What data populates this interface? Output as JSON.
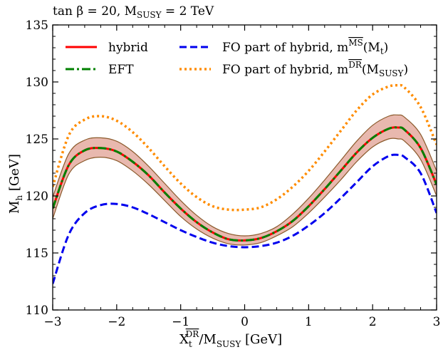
{
  "chart_data": {
    "type": "line",
    "title": "tan β = 20, M_SUSY = 2 TeV",
    "xlabel": "X_t^DR / M_SUSY [GeV]",
    "ylabel": "M_h [GeV]",
    "xlim": [
      -3,
      3
    ],
    "ylim": [
      110,
      135
    ],
    "xticks": [
      -3,
      -2,
      -1,
      0,
      1,
      2,
      3
    ],
    "yticks": [
      110,
      115,
      120,
      125,
      130,
      135
    ],
    "grid": false,
    "legend_position": "top",
    "x": [
      -3.0,
      -2.75,
      -2.5,
      -2.25,
      -2.0,
      -1.75,
      -1.5,
      -1.25,
      -1.0,
      -0.75,
      -0.5,
      -0.25,
      0.0,
      0.25,
      0.5,
      0.75,
      1.0,
      1.25,
      1.5,
      1.75,
      2.0,
      2.25,
      2.4,
      2.5,
      2.75,
      3.0
    ],
    "series": [
      {
        "name": "hybrid",
        "color": "#ff0000",
        "dash": "solid",
        "values": [
          118.9,
          122.7,
          124.0,
          124.2,
          123.9,
          123.0,
          121.8,
          120.3,
          118.9,
          117.7,
          116.8,
          116.2,
          116.1,
          116.3,
          116.9,
          117.8,
          119.1,
          120.6,
          122.2,
          123.8,
          125.1,
          125.9,
          126.0,
          125.8,
          124.2,
          121.0
        ]
      },
      {
        "name": "EFT",
        "color": "#008000",
        "dash": "dashdot",
        "values": [
          118.9,
          122.7,
          124.0,
          124.2,
          123.9,
          123.0,
          121.8,
          120.3,
          118.9,
          117.7,
          116.8,
          116.2,
          116.1,
          116.3,
          116.9,
          117.8,
          119.1,
          120.6,
          122.2,
          123.8,
          125.1,
          125.9,
          126.0,
          125.8,
          124.2,
          121.0
        ]
      },
      {
        "name": "FO part of hybrid, m_t^MS(M_t)",
        "color": "#0000ee",
        "dash": "dashed",
        "values": [
          112.3,
          116.6,
          118.5,
          119.2,
          119.3,
          119.0,
          118.4,
          117.7,
          117.0,
          116.4,
          115.9,
          115.6,
          115.5,
          115.6,
          115.9,
          116.5,
          117.4,
          118.5,
          119.8,
          121.2,
          122.6,
          123.5,
          123.6,
          123.4,
          122.0,
          118.5
        ]
      },
      {
        "name": "FO part of hybrid, m_t^DR(M_SUSY)",
        "color": "#ff8c00",
        "dash": "dotted",
        "values": [
          120.8,
          125.3,
          126.7,
          127.0,
          126.6,
          125.6,
          124.2,
          122.6,
          121.1,
          119.9,
          119.1,
          118.8,
          118.8,
          119.0,
          119.7,
          120.8,
          122.2,
          123.9,
          125.7,
          127.5,
          128.9,
          129.6,
          129.7,
          129.5,
          127.8,
          124.5
        ]
      }
    ],
    "band": {
      "name": "hybrid uncertainty",
      "color": "#e8b8ae",
      "upper": [
        119.9,
        123.7,
        124.9,
        125.1,
        124.8,
        123.9,
        122.6,
        121.1,
        119.6,
        118.3,
        117.3,
        116.7,
        116.5,
        116.7,
        117.3,
        118.4,
        119.8,
        121.4,
        123.1,
        124.8,
        126.2,
        127.0,
        127.1,
        126.9,
        125.4,
        122.2
      ],
      "lower": [
        118.0,
        121.9,
        123.1,
        123.4,
        123.1,
        122.2,
        121.0,
        119.6,
        118.2,
        117.1,
        116.3,
        115.8,
        115.7,
        115.9,
        116.5,
        117.3,
        118.5,
        119.9,
        121.4,
        123.0,
        124.3,
        125.0,
        125.0,
        124.8,
        123.2,
        120.0
      ]
    }
  },
  "legend": {
    "hybrid": "hybrid",
    "eft": "EFT",
    "fo_ms": "FO part of hybrid, m",
    "fo_ms_sup": "MS",
    "fo_ms_arg": "(M",
    "fo_ms_arg_sub": "t",
    "fo_dr": "FO part of hybrid, m",
    "fo_dr_sup": "DR",
    "fo_dr_arg": "(M",
    "fo_dr_arg_sub": "SUSY"
  },
  "title": {
    "prefix": "tan β = 20, M",
    "sub": "SUSY",
    "suffix": " = 2 TeV"
  },
  "axes": {
    "xlabel_main": "X",
    "xlabel_sub": "t",
    "xlabel_sup": "DR",
    "xlabel_rest": "/M",
    "xlabel_rest_sub": "SUSY",
    "xlabel_unit": " [GeV]",
    "ylabel_main": "M",
    "ylabel_sub": "h",
    "ylabel_unit": " [GeV]"
  }
}
